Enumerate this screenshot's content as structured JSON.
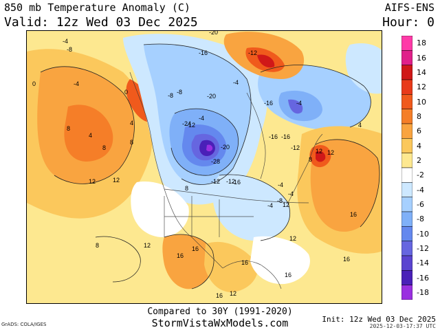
{
  "header": {
    "title": "850 mb Temperature Anomaly (C)",
    "valid": "Valid: 12z Wed 03 Dec 2025",
    "model": "AIFS-ENS",
    "hour": "Hour: 0"
  },
  "footer": {
    "compared": "Compared to 30Y (1991-2020)",
    "site": "StormVistaWxModels.com",
    "credit": "GrADS: COLA/IGES",
    "init": "Init: 12z Wed 03 Dec 2025",
    "stamp": "2025-12-03-17:37 UTC"
  },
  "colorbar": {
    "labels": [
      "18",
      "16",
      "14",
      "12",
      "10",
      "8",
      "6",
      "4",
      "2",
      "-2",
      "-4",
      "-6",
      "-8",
      "-10",
      "-12",
      "-14",
      "-16",
      "-18"
    ],
    "colors": [
      "#ff3aa8",
      "#e0208a",
      "#d01818",
      "#e83a1a",
      "#f05a1c",
      "#f57e28",
      "#f9a440",
      "#fbc85c",
      "#fde890",
      "#ffffff",
      "#cde8ff",
      "#a6d0ff",
      "#7fb0f8",
      "#6488ee",
      "#6666e0",
      "#5a44d0",
      "#4a20b8",
      "#9a30e0"
    ]
  },
  "contour_labels": [
    "0",
    "-4",
    "-8",
    "-4",
    "8",
    "4",
    "-20",
    "-16",
    "-20",
    "-12",
    "0",
    "-8",
    "-24",
    "-12",
    "-4",
    "-8",
    "-4",
    "8",
    "8",
    "4",
    "12",
    "12",
    "-16",
    "-20",
    "-28",
    "-12",
    "-16",
    "-4",
    "-16",
    "-12",
    "-4",
    "12",
    "4",
    "-4",
    "-12",
    "-16",
    "-8",
    "-4",
    "8",
    "16",
    "12",
    "8",
    "16",
    "12",
    "16",
    "16",
    "16",
    "12",
    "8",
    "12",
    "16",
    "16",
    "12"
  ]
}
